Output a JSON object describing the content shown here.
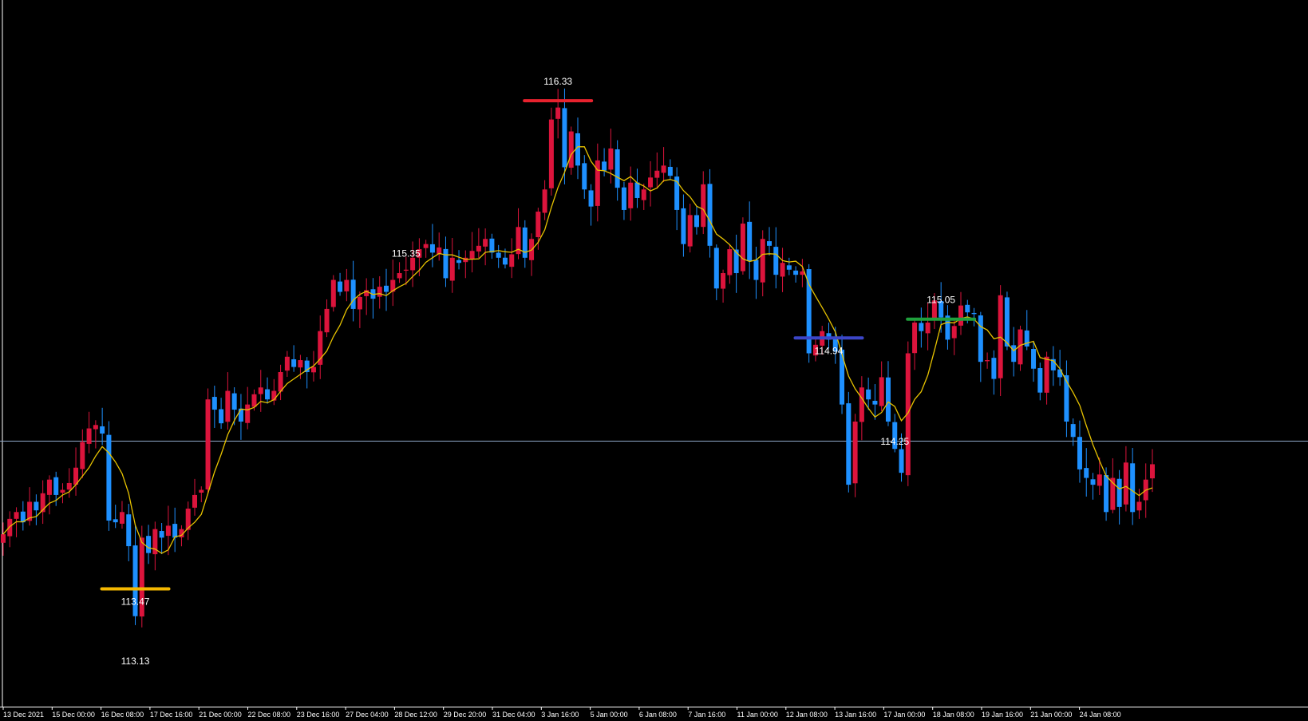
{
  "chart_data": {
    "type": "candlestick",
    "colors": {
      "background": "#000000",
      "bull": "#dc143c",
      "bear": "#1e90ff",
      "ma": "#e6c200",
      "axis": "#ffffff",
      "current_price_line": "#8fa8c8"
    },
    "ylim": [
      112.78,
      116.92
    ],
    "current_price": 114.34,
    "x_tick_labels": [
      "13 Dec 2021",
      "15 Dec 00:00",
      "16 Dec 08:00",
      "17 Dec 16:00",
      "21 Dec 00:00",
      "22 Dec 08:00",
      "23 Dec 16:00",
      "27 Dec 04:00",
      "28 Dec 12:00",
      "29 Dec 20:00",
      "31 Dec 04:00",
      "3 Jan 16:00",
      "5 Jan 00:00",
      "6 Jan 08:00",
      "7 Jan 16:00",
      "11 Jan 00:00",
      "12 Jan 08:00",
      "13 Jan 16:00",
      "17 Jan 00:00",
      "18 Jan 08:00",
      "19 Jan 16:00",
      "21 Jan 00:00",
      "24 Jan 08:00"
    ],
    "close_prices": [
      113.79,
      113.88,
      113.92,
      113.86,
      113.98,
      113.93,
      114.03,
      114.11,
      114.02,
      114.05,
      114.09,
      114.18,
      114.33,
      114.41,
      114.43,
      114.38,
      113.87,
      113.86,
      113.92,
      113.72,
      113.31,
      113.77,
      113.68,
      113.82,
      113.77,
      113.84,
      113.77,
      113.82,
      113.94,
      114.02,
      114.05,
      114.58,
      114.52,
      114.44,
      114.63,
      114.52,
      114.45,
      114.55,
      114.61,
      114.65,
      114.58,
      114.63,
      114.74,
      114.83,
      114.77,
      114.81,
      114.74,
      114.77,
      114.98,
      115.11,
      115.28,
      115.21,
      115.28,
      115.11,
      115.18,
      115.22,
      115.17,
      115.24,
      115.21,
      115.28,
      115.32,
      115.34,
      115.41,
      115.46,
      115.49,
      115.44,
      115.47,
      115.29,
      115.41,
      115.38,
      115.41,
      115.45,
      115.48,
      115.52,
      115.44,
      115.41,
      115.37,
      115.43,
      115.59,
      115.41,
      115.52,
      115.68,
      115.81,
      116.22,
      116.29,
      115.94,
      116.15,
      115.95,
      115.81,
      115.71,
      115.98,
      115.92,
      116.05,
      115.82,
      115.69,
      115.85,
      115.76,
      115.81,
      115.88,
      115.92,
      115.95,
      115.89,
      115.69,
      115.49,
      115.66,
      115.59,
      115.84,
      115.48,
      115.23,
      115.32,
      115.46,
      115.32,
      115.61,
      115.39,
      115.28,
      115.52,
      115.48,
      115.31,
      115.38,
      115.34,
      115.31,
      115.33,
      114.85,
      114.9,
      114.98,
      114.93,
      114.86,
      114.55,
      114.08,
      114.45,
      114.65,
      114.58,
      114.55,
      114.71,
      114.45,
      114.29,
      114.15,
      114.85,
      115.03,
      114.98,
      115.03,
      115.16,
      115.06,
      114.93,
      115.01,
      115.13,
      115.09,
      115.08,
      114.8,
      114.81,
      114.7,
      115.19,
      114.89,
      114.8,
      114.99,
      114.89,
      114.76,
      114.62,
      114.83,
      114.75,
      114.71,
      114.45,
      114.36,
      114.17,
      114.12,
      114.08,
      114.14,
      113.92,
      114.12,
      113.95,
      114.21,
      113.92,
      113.98,
      114.11,
      114.2
    ]
  },
  "annotations": [
    {
      "text": "116.33",
      "color": "#e8222e",
      "price": 116.33,
      "label_side": "above"
    },
    {
      "text": "115.35",
      "color": null,
      "price": 115.35,
      "label_side": "above"
    },
    {
      "text": "114.94",
      "color": "#3c46c8",
      "price": 114.94,
      "label_side": "below"
    },
    {
      "text": "114.25",
      "color": null,
      "price": 114.25,
      "label_side": "above"
    },
    {
      "text": "113.13",
      "color": null,
      "price": 113.13,
      "label_side": "below"
    },
    {
      "text": "115.05",
      "color": "#1fa03c",
      "price": 115.05,
      "label_side": "above"
    },
    {
      "text": "113.47",
      "color": "#f5b800",
      "price": 113.47,
      "label_side": "below"
    }
  ]
}
